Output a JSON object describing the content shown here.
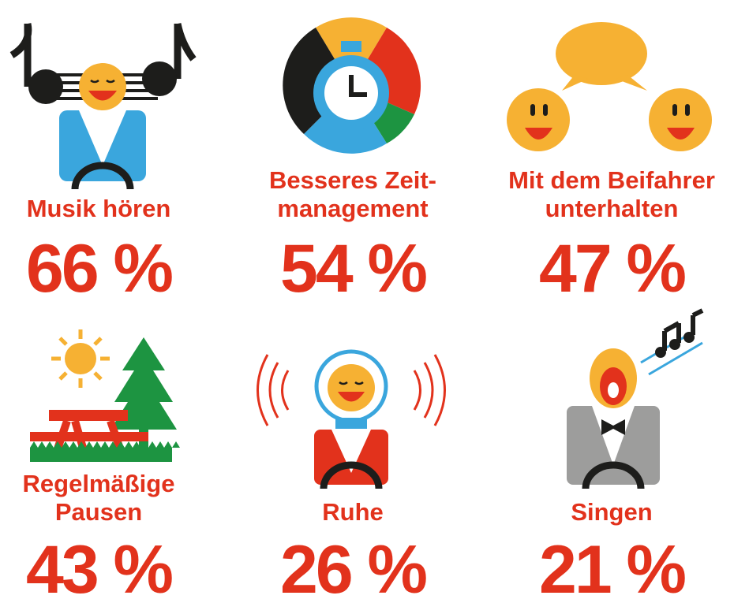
{
  "items": [
    {
      "label": [
        "Musik hören"
      ],
      "value": "66 %"
    },
    {
      "label": [
        "Besseres Zeit-",
        "management"
      ],
      "value": "54 %"
    },
    {
      "label": [
        "Mit dem Beifahrer",
        "unterhalten"
      ],
      "value": "47 %"
    },
    {
      "label": [
        "Regelmäßige",
        "Pausen"
      ],
      "value": "43 %"
    },
    {
      "label": [
        "Ruhe"
      ],
      "value": "26 %"
    },
    {
      "label": [
        "Singen"
      ],
      "value": "21 %"
    }
  ]
}
